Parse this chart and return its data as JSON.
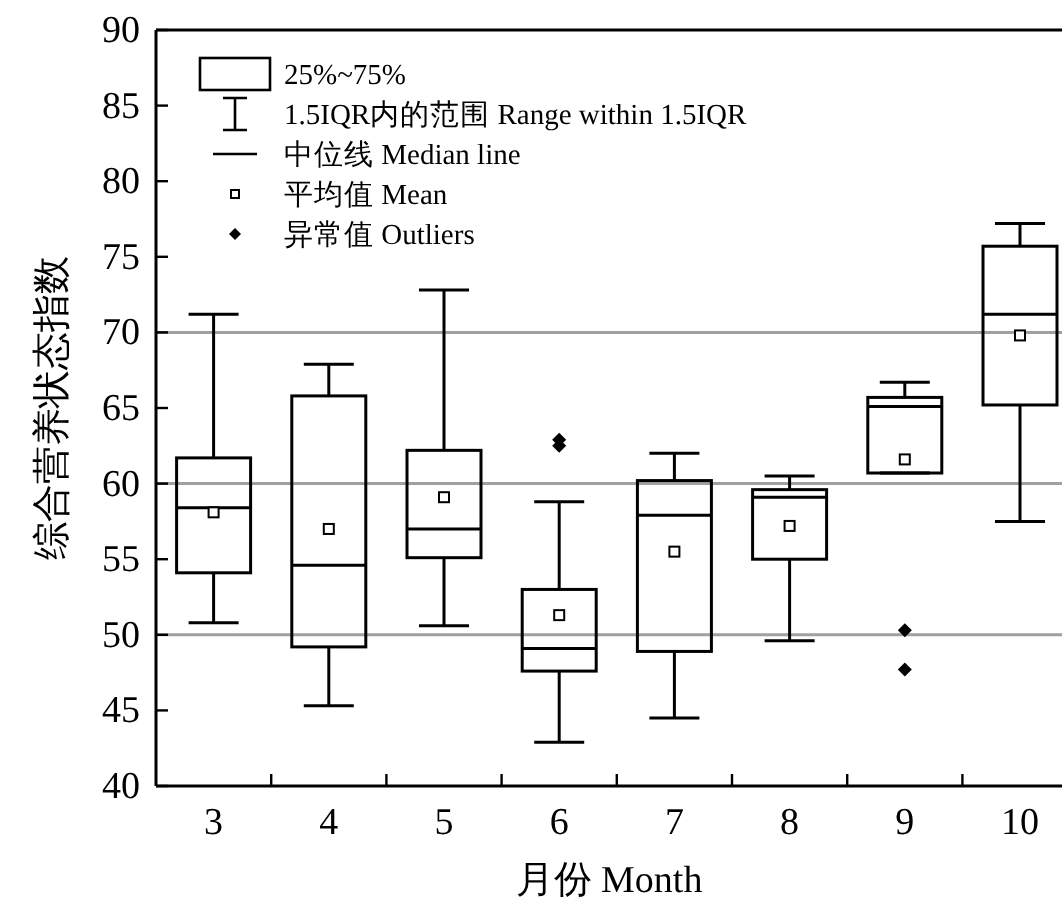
{
  "chart_data": {
    "type": "box",
    "ylabel": "综合营养状态指数",
    "xlabel": "月份 Month",
    "categories": [
      "3",
      "4",
      "5",
      "6",
      "7",
      "8",
      "9",
      "10"
    ],
    "boxes": [
      {
        "low": 50.8,
        "q1": 54.1,
        "median": 58.4,
        "q3": 61.7,
        "high": 71.2,
        "mean": 58.1
      },
      {
        "low": 45.3,
        "q1": 49.2,
        "median": 54.6,
        "q3": 65.8,
        "high": 67.9,
        "mean": 57.0
      },
      {
        "low": 50.6,
        "q1": 55.1,
        "median": 57.0,
        "q3": 62.2,
        "high": 72.8,
        "mean": 59.1
      },
      {
        "low": 42.9,
        "q1": 47.6,
        "median": 49.1,
        "q3": 53.0,
        "high": 58.8,
        "mean": 51.3,
        "outliers": [
          62.5,
          62.9
        ]
      },
      {
        "low": 44.5,
        "q1": 48.9,
        "median": 57.9,
        "q3": 60.2,
        "high": 62.0,
        "mean": 55.5
      },
      {
        "low": 49.6,
        "q1": 55.0,
        "median": 59.1,
        "q3": 59.6,
        "high": 60.5,
        "mean": 57.2
      },
      {
        "low": 60.7,
        "q1": 60.7,
        "median": 65.1,
        "q3": 65.7,
        "high": 66.7,
        "mean": 61.6,
        "outliers": [
          50.3,
          47.7
        ]
      },
      {
        "low": 57.5,
        "q1": 65.2,
        "median": 71.2,
        "q3": 75.7,
        "high": 77.2,
        "mean": 69.8
      }
    ],
    "ylim": [
      40,
      90
    ],
    "yticks": [
      40,
      45,
      50,
      55,
      60,
      65,
      70,
      75,
      80,
      85,
      90
    ],
    "ref_lines": [
      {
        "axis": "y",
        "value": 50,
        "color": "#a0a0a0"
      },
      {
        "axis": "y",
        "value": 60,
        "color": "#a0a0a0"
      },
      {
        "axis": "y",
        "value": 70,
        "color": "#a0a0a0"
      }
    ],
    "annotations": [
      "25%~75%",
      "1.5IQR内的范围 Range within 1.5IQR",
      "中位线 Median line",
      "平均值 Mean",
      "异常值 Outliers"
    ]
  }
}
